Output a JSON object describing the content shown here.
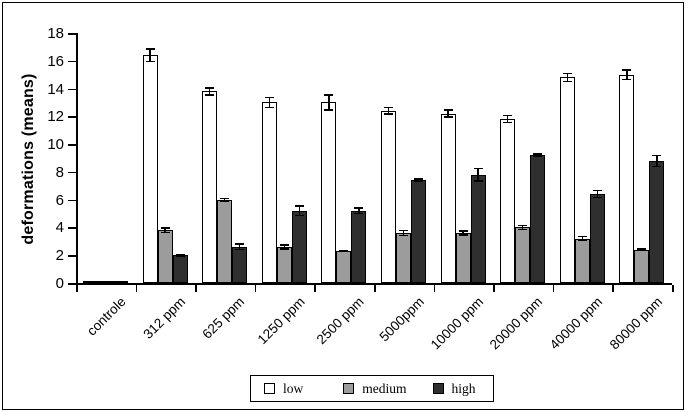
{
  "chart_data": {
    "type": "bar",
    "title": "",
    "ylabel": "deformations (means)",
    "xlabel": "",
    "ylim": [
      0,
      18
    ],
    "ytick_step": 2,
    "grid": false,
    "legend_position": "bottom-center",
    "bar_outline_color": "#000000",
    "error_bars": true,
    "categories": [
      "controle",
      "312 ppm",
      "625 ppm",
      "1250 ppm",
      "2500 ppm",
      "5000ppm",
      "10000 ppm",
      "20000 ppm",
      "40000 ppm",
      "80000 ppm"
    ],
    "series": [
      {
        "name": "low",
        "color": "#ffffff",
        "values": [
          0.07,
          16.4,
          13.8,
          13.0,
          13.0,
          12.4,
          12.2,
          11.8,
          14.8,
          15.0
        ],
        "errors": [
          0,
          0.5,
          0.3,
          0.4,
          0.6,
          0.3,
          0.3,
          0.3,
          0.35,
          0.4
        ]
      },
      {
        "name": "medium",
        "color": "#9c9c9c",
        "values": [
          0.07,
          3.8,
          6.0,
          2.6,
          2.3,
          3.6,
          3.6,
          4.0,
          3.2,
          2.4
        ],
        "errors": [
          0,
          0.2,
          0.15,
          0.2,
          0.1,
          0.25,
          0.2,
          0.2,
          0.2,
          0.1
        ]
      },
      {
        "name": "high",
        "color": "#2f2f2f",
        "values": [
          0.07,
          2.0,
          2.6,
          5.2,
          5.2,
          7.4,
          7.8,
          9.2,
          6.4,
          8.8
        ],
        "errors": [
          0,
          0.1,
          0.25,
          0.4,
          0.25,
          0.15,
          0.5,
          0.15,
          0.3,
          0.45
        ]
      }
    ]
  }
}
